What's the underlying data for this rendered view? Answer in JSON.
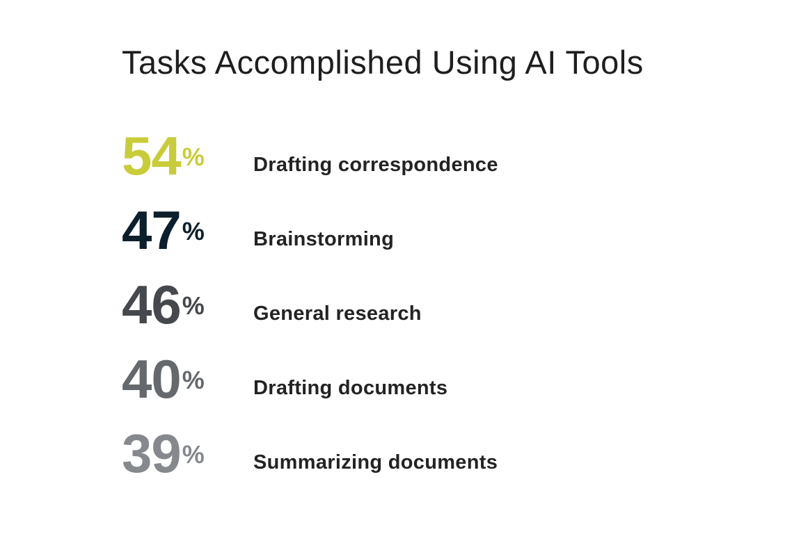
{
  "chart_data": {
    "type": "table",
    "title": "Tasks Accomplished Using AI Tools",
    "unit": "%",
    "items": [
      {
        "value": 54,
        "label": "Drafting correspondence",
        "color": "#c9cc3a"
      },
      {
        "value": 47,
        "label": "Brainstorming",
        "color": "#0c1f2d"
      },
      {
        "value": 46,
        "label": "General research",
        "color": "#45484c"
      },
      {
        "value": 40,
        "label": "Drafting documents",
        "color": "#65696d"
      },
      {
        "value": 39,
        "label": "Summarizing documents",
        "color": "#85898d"
      }
    ]
  }
}
